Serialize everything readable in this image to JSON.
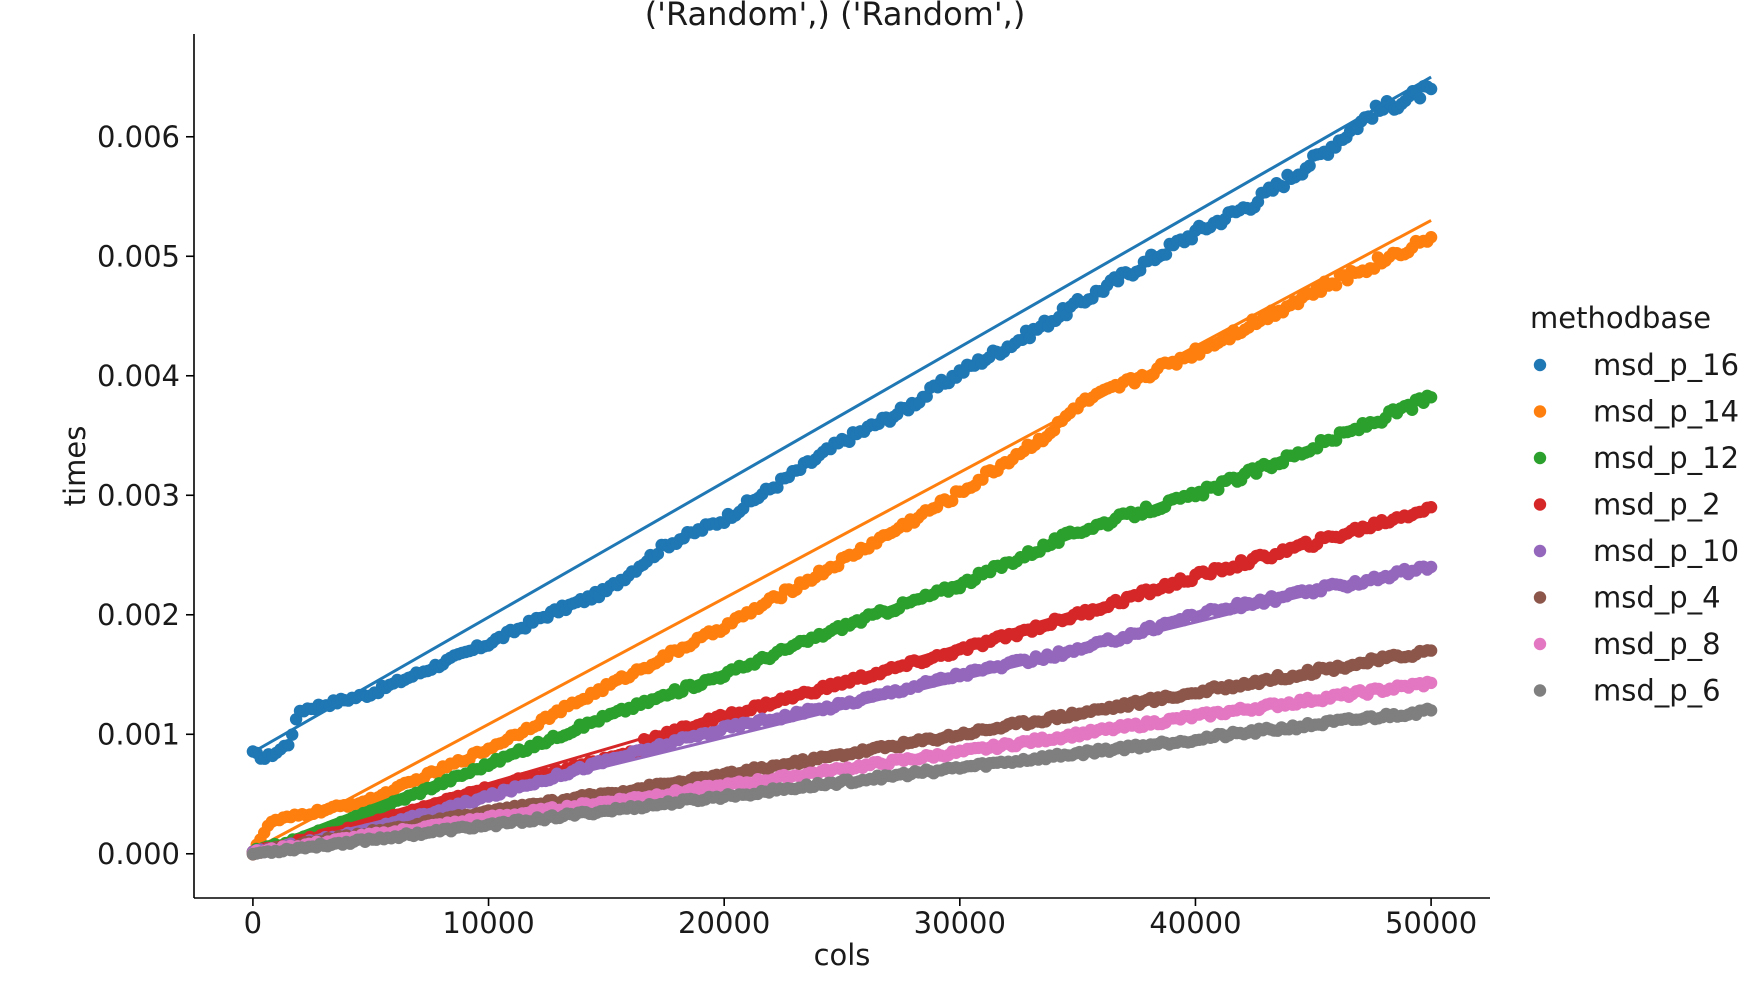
{
  "chart_data": {
    "type": "scatter",
    "title": "('Random',) ('Random',)",
    "xlabel": "cols",
    "ylabel": "times",
    "xlim": [
      -2500,
      52500
    ],
    "ylim": [
      -0.00037,
      0.00686
    ],
    "x_ticks": [
      0,
      10000,
      20000,
      30000,
      40000,
      50000
    ],
    "x_tick_labels": [
      "0",
      "10000",
      "20000",
      "30000",
      "40000",
      "50000"
    ],
    "y_ticks": [
      0.0,
      0.001,
      0.002,
      0.003,
      0.004,
      0.005,
      0.006
    ],
    "y_tick_labels": [
      "0.000",
      "0.001",
      "0.002",
      "0.003",
      "0.004",
      "0.005",
      "0.006"
    ],
    "grid": false,
    "legend_title": "methodbase",
    "legend_position": "right",
    "series": [
      {
        "name": "msd_p_16",
        "color": "#1f77b4",
        "points": [
          [
            0,
            0.00084
          ],
          [
            500,
            0.0008
          ],
          [
            1000,
            0.00085
          ],
          [
            1500,
            0.00092
          ],
          [
            2000,
            0.0012
          ],
          [
            5000,
            0.00134
          ],
          [
            10000,
            0.00176
          ],
          [
            12500,
            0.002
          ],
          [
            15000,
            0.0022
          ],
          [
            17500,
            0.00258
          ],
          [
            20000,
            0.0028
          ],
          [
            25000,
            0.00345
          ],
          [
            27500,
            0.0037
          ],
          [
            30000,
            0.00403
          ],
          [
            32500,
            0.0043
          ],
          [
            35000,
            0.0046
          ],
          [
            37500,
            0.0049
          ],
          [
            40000,
            0.0052
          ],
          [
            42500,
            0.00545
          ],
          [
            45000,
            0.0058
          ],
          [
            47500,
            0.0062
          ],
          [
            50000,
            0.0064
          ]
        ],
        "fit": [
          [
            0,
            0.00085
          ],
          [
            50000,
            0.0065
          ]
        ]
      },
      {
        "name": "msd_p_14",
        "color": "#ff7f0e",
        "points": [
          [
            0,
            3e-05
          ],
          [
            800,
            0.00027
          ],
          [
            5000,
            0.00045
          ],
          [
            10000,
            0.00088
          ],
          [
            15000,
            0.0014
          ],
          [
            20000,
            0.0019
          ],
          [
            25000,
            0.00245
          ],
          [
            30000,
            0.00302
          ],
          [
            34000,
            0.00355
          ],
          [
            35000,
            0.00375
          ],
          [
            40000,
            0.0042
          ],
          [
            45000,
            0.0047
          ],
          [
            50000,
            0.00516
          ]
        ],
        "fit": [
          [
            0,
            3e-05
          ],
          [
            50000,
            0.0053
          ]
        ]
      },
      {
        "name": "msd_p_12",
        "color": "#2ca02c",
        "points": [
          [
            0,
            2e-05
          ],
          [
            2000,
            0.00012
          ],
          [
            5000,
            0.00035
          ],
          [
            10000,
            0.00075
          ],
          [
            15000,
            0.00115
          ],
          [
            20000,
            0.0015
          ],
          [
            25000,
            0.0019
          ],
          [
            30000,
            0.00225
          ],
          [
            35000,
            0.0027
          ],
          [
            40000,
            0.003
          ],
          [
            45000,
            0.0034
          ],
          [
            50000,
            0.00382
          ]
        ],
        "fit": [
          [
            0,
            2e-05
          ],
          [
            50000,
            0.0038
          ]
        ]
      },
      {
        "name": "msd_p_2",
        "color": "#d62728",
        "points": [
          [
            0,
            1e-05
          ],
          [
            5000,
            0.00025
          ],
          [
            10000,
            0.00055
          ],
          [
            16500,
            0.00087
          ],
          [
            16600,
            0.00095
          ],
          [
            20000,
            0.00115
          ],
          [
            25000,
            0.00143
          ],
          [
            30000,
            0.0017
          ],
          [
            35000,
            0.002
          ],
          [
            40000,
            0.00232
          ],
          [
            45000,
            0.0026
          ],
          [
            50000,
            0.0029
          ]
        ],
        "fit": [
          [
            0,
            1e-05
          ],
          [
            50000,
            0.0029
          ]
        ]
      },
      {
        "name": "msd_p_10",
        "color": "#9467bd",
        "points": [
          [
            0,
            1e-05
          ],
          [
            5000,
            0.0002
          ],
          [
            10000,
            0.00048
          ],
          [
            15000,
            0.00078
          ],
          [
            20000,
            0.00105
          ],
          [
            25000,
            0.00125
          ],
          [
            30000,
            0.0015
          ],
          [
            35000,
            0.0017
          ],
          [
            40000,
            0.002
          ],
          [
            45000,
            0.0022
          ],
          [
            50000,
            0.0024
          ]
        ],
        "fit": [
          [
            0,
            1e-05
          ],
          [
            50000,
            0.00242
          ]
        ]
      },
      {
        "name": "msd_p_4",
        "color": "#8c564b",
        "points": [
          [
            0,
            1e-05
          ],
          [
            10000,
            0.00035
          ],
          [
            20000,
            0.00066
          ],
          [
            30000,
            0.001
          ],
          [
            40000,
            0.00135
          ],
          [
            50000,
            0.0017
          ]
        ],
        "fit": [
          [
            0,
            1e-05
          ],
          [
            50000,
            0.0017
          ]
        ]
      },
      {
        "name": "msd_p_8",
        "color": "#e377c2",
        "points": [
          [
            0,
            1e-05
          ],
          [
            10000,
            0.0003
          ],
          [
            20000,
            0.00057
          ],
          [
            30000,
            0.00085
          ],
          [
            40000,
            0.00115
          ],
          [
            50000,
            0.00143
          ]
        ],
        "fit": [
          [
            0,
            1e-05
          ],
          [
            50000,
            0.00144
          ]
        ]
      },
      {
        "name": "msd_p_6",
        "color": "#7f7f7f",
        "points": [
          [
            0,
            0.0
          ],
          [
            10000,
            0.00024
          ],
          [
            20000,
            0.00048
          ],
          [
            30000,
            0.00072
          ],
          [
            40000,
            0.00096
          ],
          [
            50000,
            0.0012
          ]
        ],
        "fit": [
          [
            0,
            0.0
          ],
          [
            50000,
            0.0012
          ]
        ]
      }
    ]
  }
}
